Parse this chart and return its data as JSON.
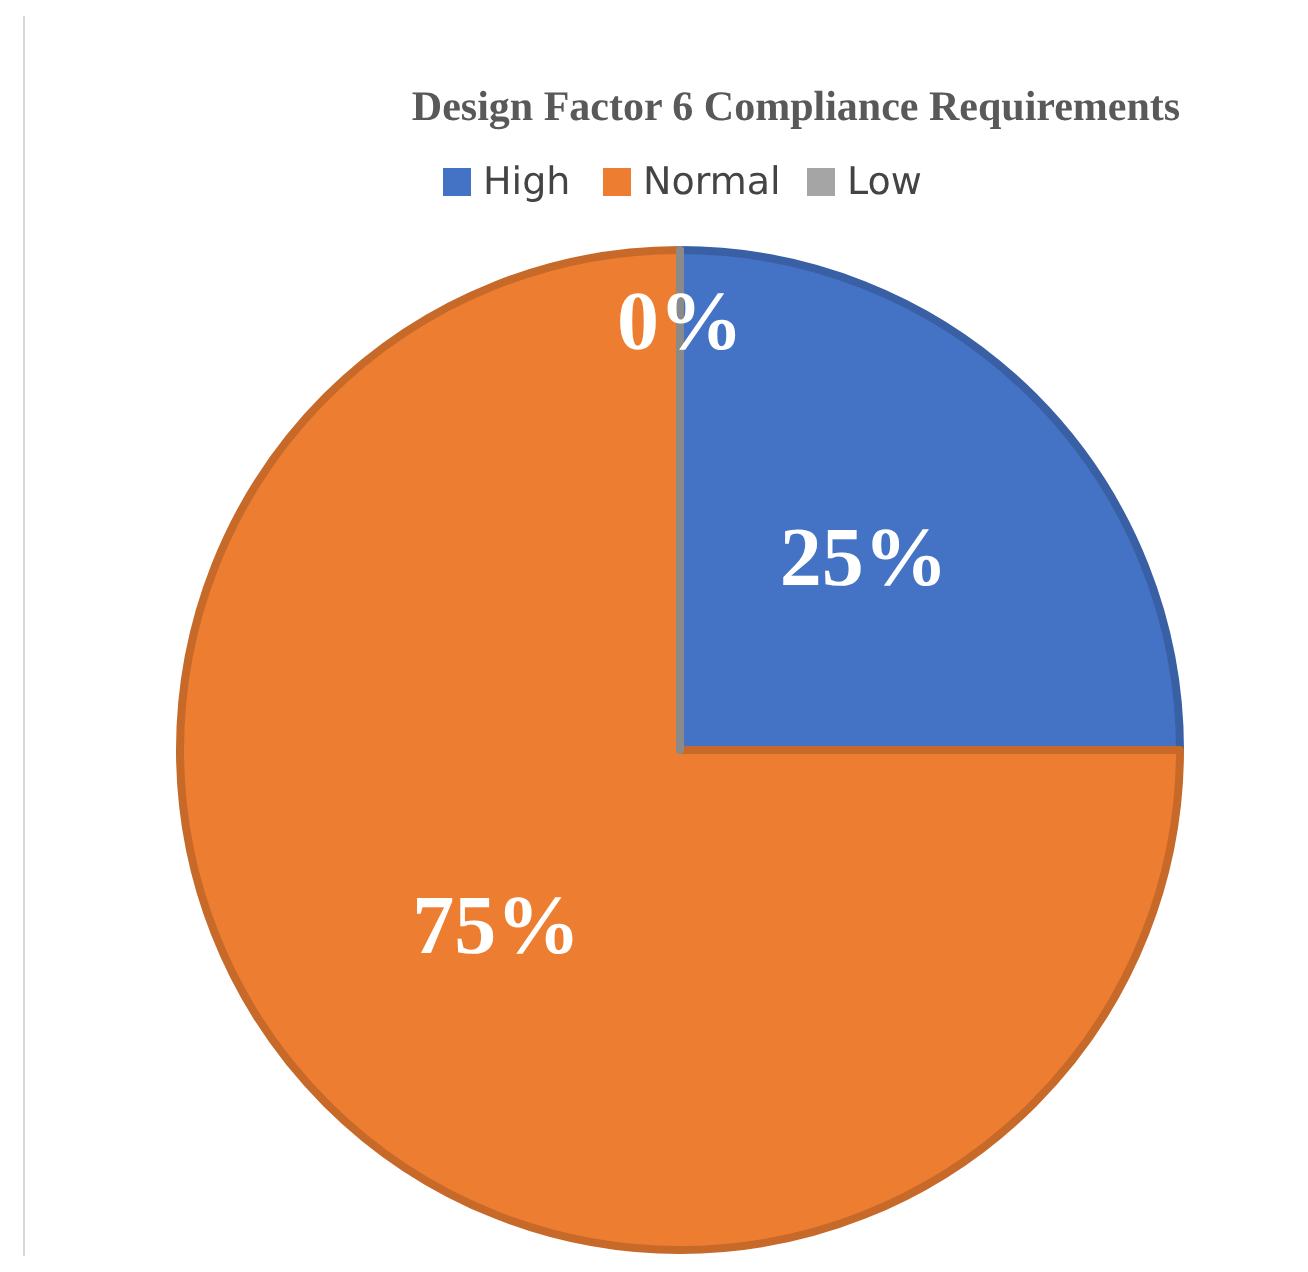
{
  "chart_data": {
    "type": "pie",
    "title": "Design Factor 6 Compliance Requirements",
    "categories": [
      "High",
      "Normal",
      "Low"
    ],
    "values": [
      25,
      75,
      0
    ],
    "colors": [
      "#4472c4",
      "#ed7d31",
      "#a5a5a5"
    ],
    "value_labels": [
      "25%",
      "75%",
      "0%"
    ],
    "legend": "top"
  }
}
